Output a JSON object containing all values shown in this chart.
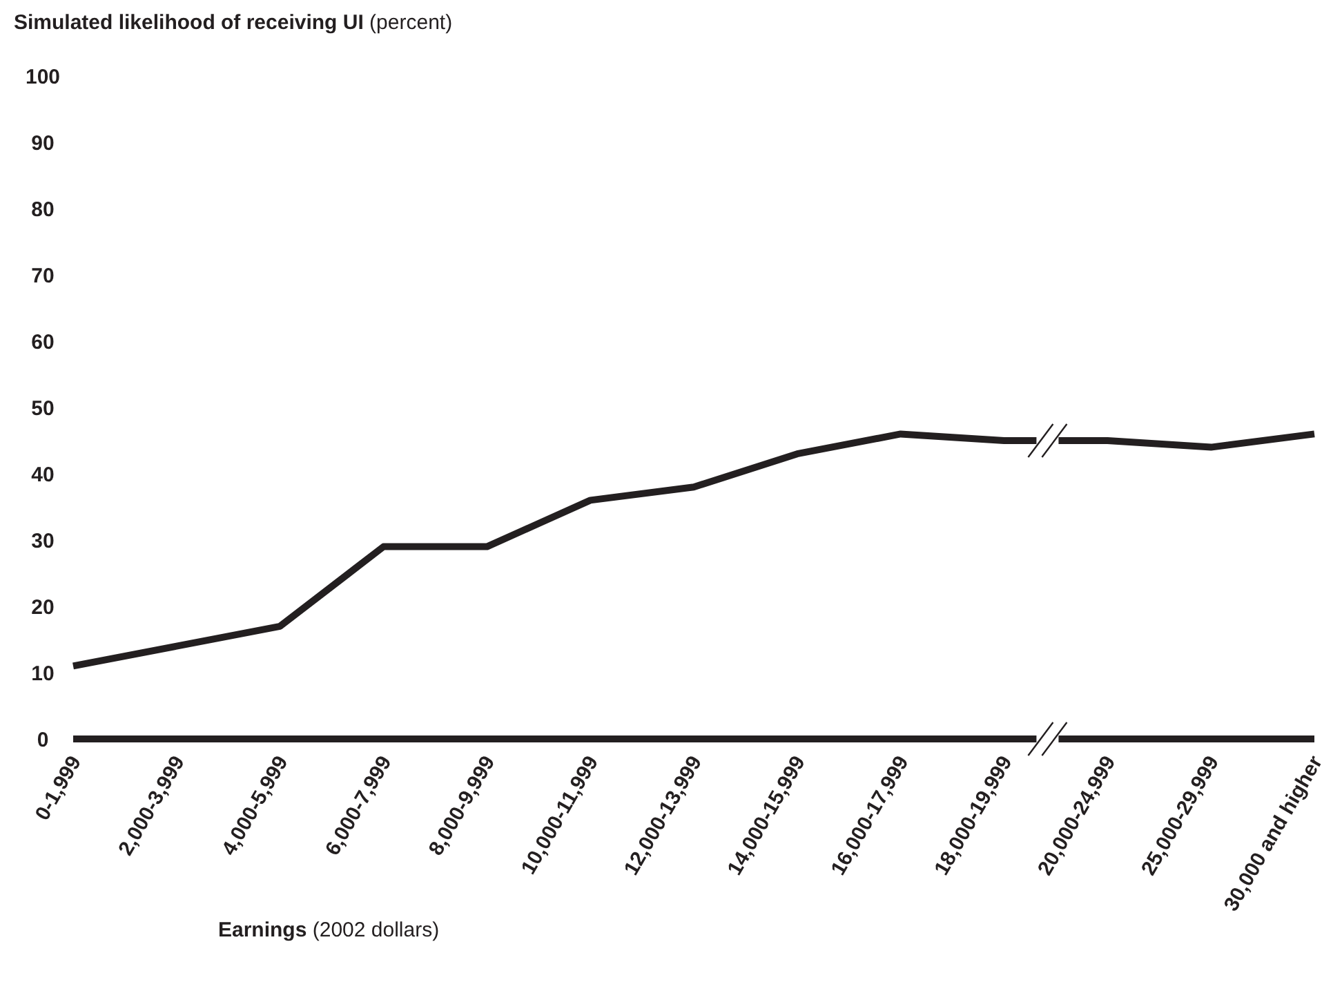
{
  "chart_data": {
    "type": "line",
    "ylabel": "Simulated likelihood of receiving UI (percent)",
    "xlabel": "Earnings (2002 dollars)",
    "categories": [
      "0-1,999",
      "2,000-3,999",
      "4,000-5,999",
      "6,000-7,999",
      "8,000-9,999",
      "10,000-11,999",
      "12,000-13,999",
      "14,000-15,999",
      "16,000-17,999",
      "18,000-19,999",
      "20,000-24,999",
      "25,000-29,999",
      "30,000 and higher"
    ],
    "series": [
      {
        "color": "#231f20",
        "values": [
          11,
          14,
          17,
          29,
          29,
          36,
          38,
          43,
          46,
          45,
          45,
          44,
          46
        ]
      }
    ],
    "ylim": [
      0,
      100
    ],
    "yticks": [
      0,
      10,
      20,
      30,
      40,
      50,
      60,
      70,
      80,
      90,
      100
    ],
    "grid": false,
    "legend": false,
    "marker": "none",
    "line_style": "solid"
  }
}
